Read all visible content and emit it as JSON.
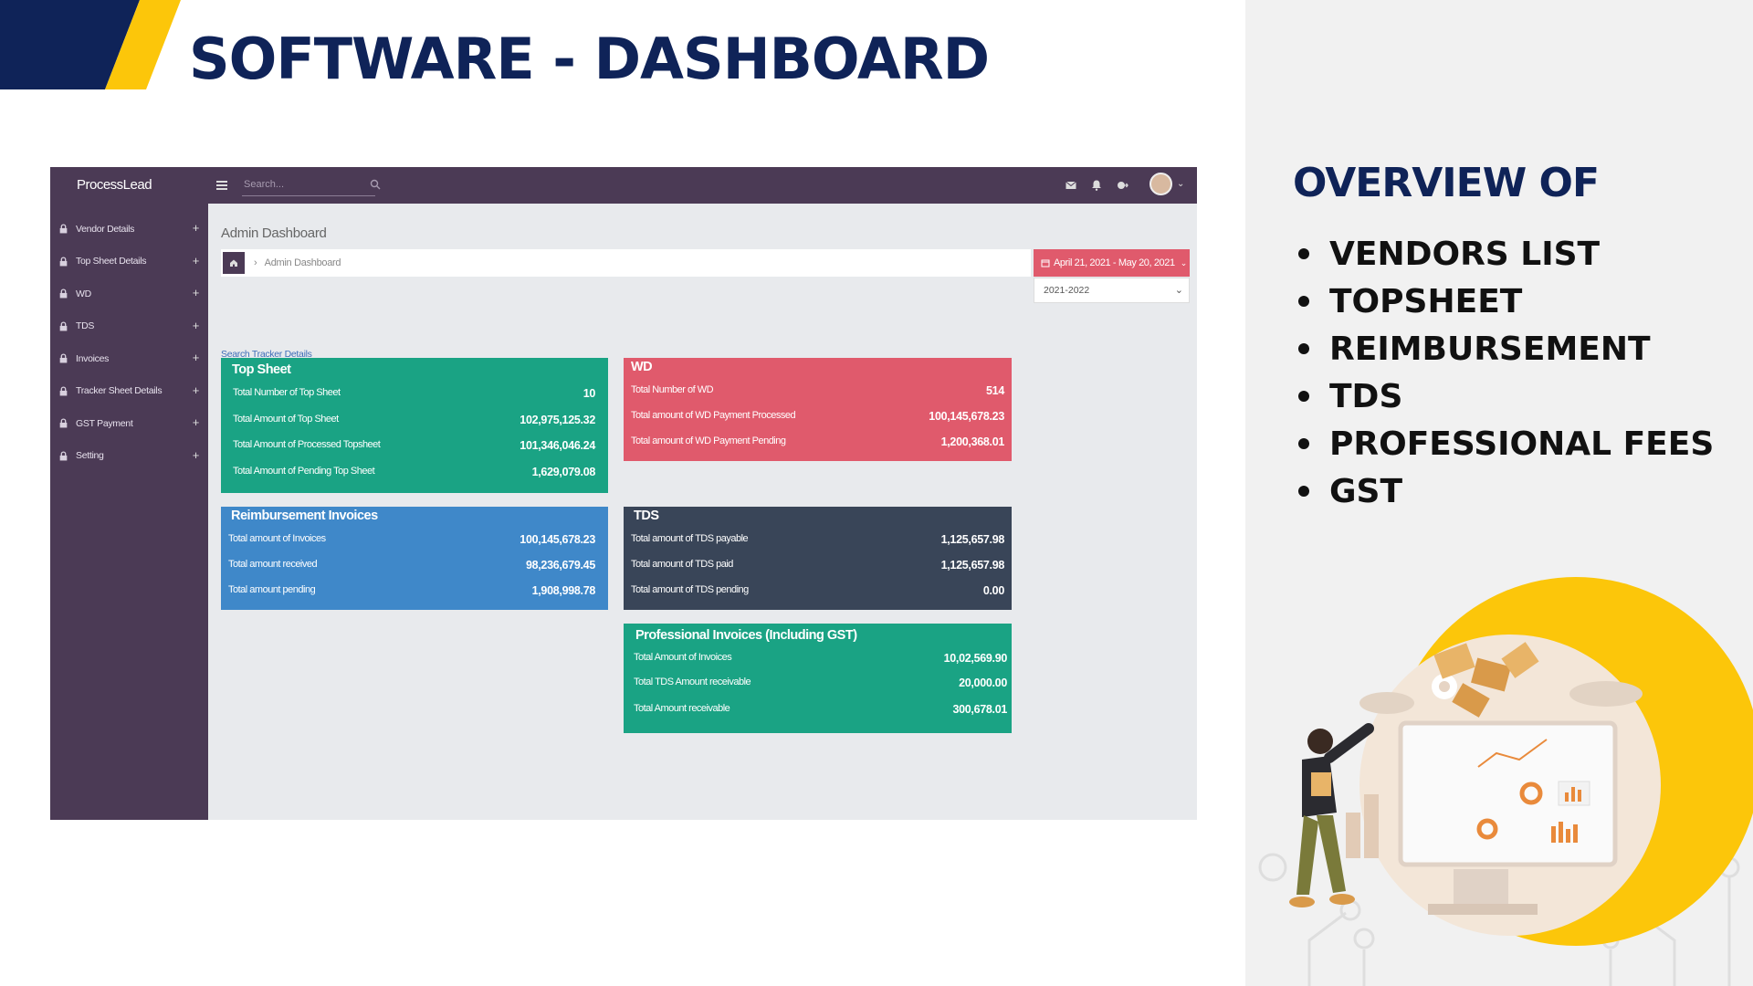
{
  "slide": {
    "title": "SOFTWARE - DASHBOARD",
    "accent_colors": {
      "navy": "#0f2358",
      "yellow": "#fcc60a"
    }
  },
  "overview": {
    "title": "OVERVIEW OF",
    "items": [
      "VENDORS LIST",
      "TOPSHEET",
      "REIMBURSEMENT",
      "TDS",
      "PROFESSIONAL FEES",
      "GST"
    ]
  },
  "app": {
    "brand": "ProcessLead",
    "search_placeholder": "Search...",
    "sidebar_items": [
      {
        "label": "Vendor Details",
        "icon": "lock-icon"
      },
      {
        "label": "Top Sheet Details",
        "icon": "lock-icon"
      },
      {
        "label": "WD",
        "icon": "lock-icon"
      },
      {
        "label": "TDS",
        "icon": "lock-icon"
      },
      {
        "label": "Invoices",
        "icon": "lock-icon"
      },
      {
        "label": "Tracker Sheet Details",
        "icon": "lock-icon"
      },
      {
        "label": "GST Payment",
        "icon": "lock-icon"
      },
      {
        "label": "Setting",
        "icon": "lock-icon"
      }
    ],
    "page_heading": "Admin Dashboard",
    "breadcrumb": {
      "separator": "›",
      "current": "Admin Dashboard"
    },
    "date_range": "April 21, 2021 - May 20, 2021",
    "year_select": "2021-2022",
    "tracker_link": "Search Tracker Details",
    "colors": {
      "sidebar": "#4b3a55",
      "green": "#1aa384",
      "red": "#e05a6c",
      "blue": "#3f88c9",
      "dark": "#394558"
    },
    "cards": {
      "top_sheet": {
        "title": "Top Sheet",
        "rows": [
          {
            "label": "Total Number of Top Sheet",
            "value": "10"
          },
          {
            "label": "Total Amount of Top Sheet",
            "value": "102,975,125.32"
          },
          {
            "label": "Total Amount of Processed Topsheet",
            "value": "101,346,046.24"
          },
          {
            "label": "Total Amount of Pending Top Sheet",
            "value": "1,629,079.08"
          }
        ]
      },
      "wd": {
        "title": "WD",
        "rows": [
          {
            "label": "Total Number of WD",
            "value": "514"
          },
          {
            "label": "Total amount of WD Payment Processed",
            "value": "100,145,678.23"
          },
          {
            "label": "Total amount of WD Payment Pending",
            "value": "1,200,368.01"
          }
        ]
      },
      "reimbursement": {
        "title": "Reimbursement Invoices",
        "rows": [
          {
            "label": "Total amount of Invoices",
            "value": "100,145,678.23"
          },
          {
            "label": "Total amount received",
            "value": "98,236,679.45"
          },
          {
            "label": "Total amount pending",
            "value": "1,908,998.78"
          }
        ]
      },
      "tds": {
        "title": "TDS",
        "rows": [
          {
            "label": "Total amount of TDS payable",
            "value": "1,125,657.98"
          },
          {
            "label": "Total amount of TDS paid",
            "value": "1,125,657.98"
          },
          {
            "label": "Total amount of TDS pending",
            "value": "0.00"
          }
        ]
      },
      "professional": {
        "title": "Professional Invoices (Including GST)",
        "rows": [
          {
            "label": "Total Amount of Invoices",
            "value": "10,02,569.90"
          },
          {
            "label": "Total TDS Amount receivable",
            "value": "20,000.00"
          },
          {
            "label": "Total Amount receivable",
            "value": "300,678.01"
          }
        ]
      }
    }
  }
}
